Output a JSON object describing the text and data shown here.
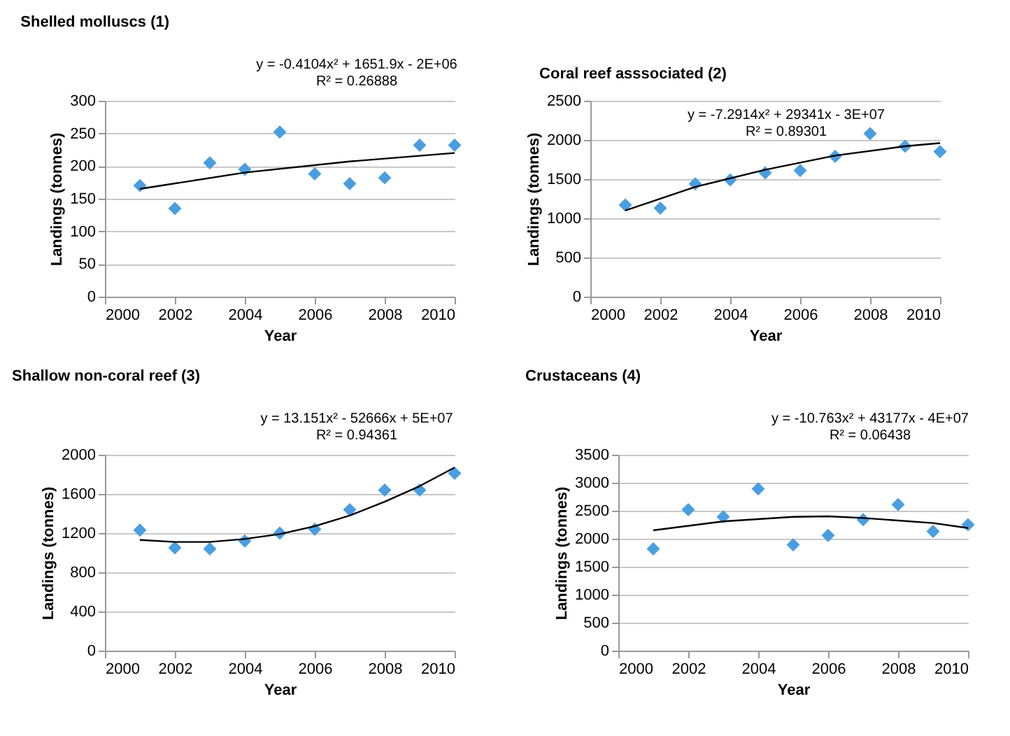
{
  "chart_data": [
    {
      "type": "scatter",
      "title": "Shelled molluscs (1)",
      "xlabel": "Year",
      "ylabel": "Landings (tonnes)",
      "annotations": [
        "y = -0.4104x² + 1651.9x - 2E+06",
        "R² = 0.26888"
      ],
      "x": [
        2001,
        2002,
        2003,
        2004,
        2005,
        2006,
        2007,
        2008,
        2009,
        2010
      ],
      "marker": "diamond",
      "grid": "y",
      "xlim": [
        2000,
        2010
      ],
      "xticks": [
        2000,
        2002,
        2004,
        2006,
        2008,
        2010
      ],
      "ylim": [
        0,
        300
      ],
      "yticks": [
        0,
        50,
        100,
        150,
        200,
        250,
        300
      ],
      "series": [
        {
          "color": "#4a9ee0",
          "values": [
            170,
            135,
            205,
            195,
            252,
            188,
            173,
            182,
            232,
            232
          ]
        },
        {
          "type": "line",
          "color": "#000000",
          "x": [
            2001,
            2004,
            2007,
            2010
          ],
          "values": [
            165,
            190,
            207,
            220
          ],
          "marker": "none"
        }
      ]
    },
    {
      "type": "scatter",
      "title": "Coral reef asssociated (2)",
      "xlabel": "Year",
      "ylabel": "Landings (tonnes)",
      "annotations": [
        "y = -7.2914x² + 29341x - 3E+07",
        "R² = 0.89301"
      ],
      "x": [
        2001,
        2002,
        2003,
        2004,
        2005,
        2006,
        2007,
        2008,
        2009,
        2010
      ],
      "marker": "diamond",
      "grid": "y",
      "xlim": [
        2000,
        2010
      ],
      "xticks": [
        2000,
        2002,
        2004,
        2006,
        2008,
        2010
      ],
      "ylim": [
        0,
        2500
      ],
      "yticks": [
        0,
        500,
        1000,
        1500,
        2000,
        2500
      ],
      "series": [
        {
          "color": "#4a9ee0",
          "values": [
            1170,
            1130,
            1440,
            1490,
            1580,
            1610,
            1790,
            2080,
            1920,
            1850
          ]
        },
        {
          "type": "line",
          "color": "#000000",
          "x": [
            2001,
            2003,
            2005,
            2007,
            2009,
            2010
          ],
          "values": [
            1100,
            1400,
            1620,
            1800,
            1920,
            1960
          ],
          "marker": "none"
        }
      ]
    },
    {
      "type": "scatter",
      "title": "Shallow non-coral reef (3)",
      "xlabel": "Year",
      "ylabel": "Landings (tonnes)",
      "annotations": [
        "y = 13.151x² - 52666x + 5E+07",
        "R² = 0.94361"
      ],
      "x": [
        2001,
        2002,
        2003,
        2004,
        2005,
        2006,
        2007,
        2008,
        2009,
        2010
      ],
      "marker": "diamond",
      "grid": "y",
      "xlim": [
        2000,
        2010
      ],
      "xticks": [
        2000,
        2002,
        2004,
        2006,
        2008,
        2010
      ],
      "ylim": [
        0,
        2000
      ],
      "yticks": [
        0,
        400,
        800,
        1200,
        1600,
        2000
      ],
      "series": [
        {
          "color": "#4a9ee0",
          "values": [
            1230,
            1050,
            1040,
            1120,
            1200,
            1240,
            1440,
            1640,
            1640,
            1810
          ]
        },
        {
          "type": "line",
          "color": "#000000",
          "x": [
            2001,
            2002,
            2003,
            2004,
            2005,
            2006,
            2007,
            2008,
            2009,
            2010
          ],
          "values": [
            1130,
            1110,
            1110,
            1140,
            1190,
            1270,
            1380,
            1520,
            1680,
            1870
          ],
          "marker": "none"
        }
      ]
    },
    {
      "type": "scatter",
      "title": "Crustaceans (4)",
      "xlabel": "Year",
      "ylabel": "Landings (tonnes)",
      "annotations": [
        "y = -10.763x² + 43177x - 4E+07",
        "R² = 0.06438"
      ],
      "x": [
        2001,
        2002,
        2003,
        2004,
        2005,
        2006,
        2007,
        2008,
        2009,
        2010
      ],
      "marker": "diamond",
      "grid": "y",
      "xlim": [
        2000,
        2010
      ],
      "xticks": [
        2000,
        2002,
        2004,
        2006,
        2008,
        2010
      ],
      "ylim": [
        0,
        3500
      ],
      "yticks": [
        0,
        500,
        1000,
        1500,
        2000,
        2500,
        3000,
        3500
      ],
      "series": [
        {
          "color": "#4a9ee0",
          "values": [
            1820,
            2520,
            2390,
            2890,
            1890,
            2060,
            2340,
            2610,
            2130,
            2250
          ]
        },
        {
          "type": "line",
          "color": "#000000",
          "x": [
            2001,
            2003,
            2005,
            2006,
            2007,
            2009,
            2010
          ],
          "values": [
            2150,
            2310,
            2390,
            2400,
            2370,
            2280,
            2190
          ],
          "marker": "none"
        }
      ]
    }
  ]
}
